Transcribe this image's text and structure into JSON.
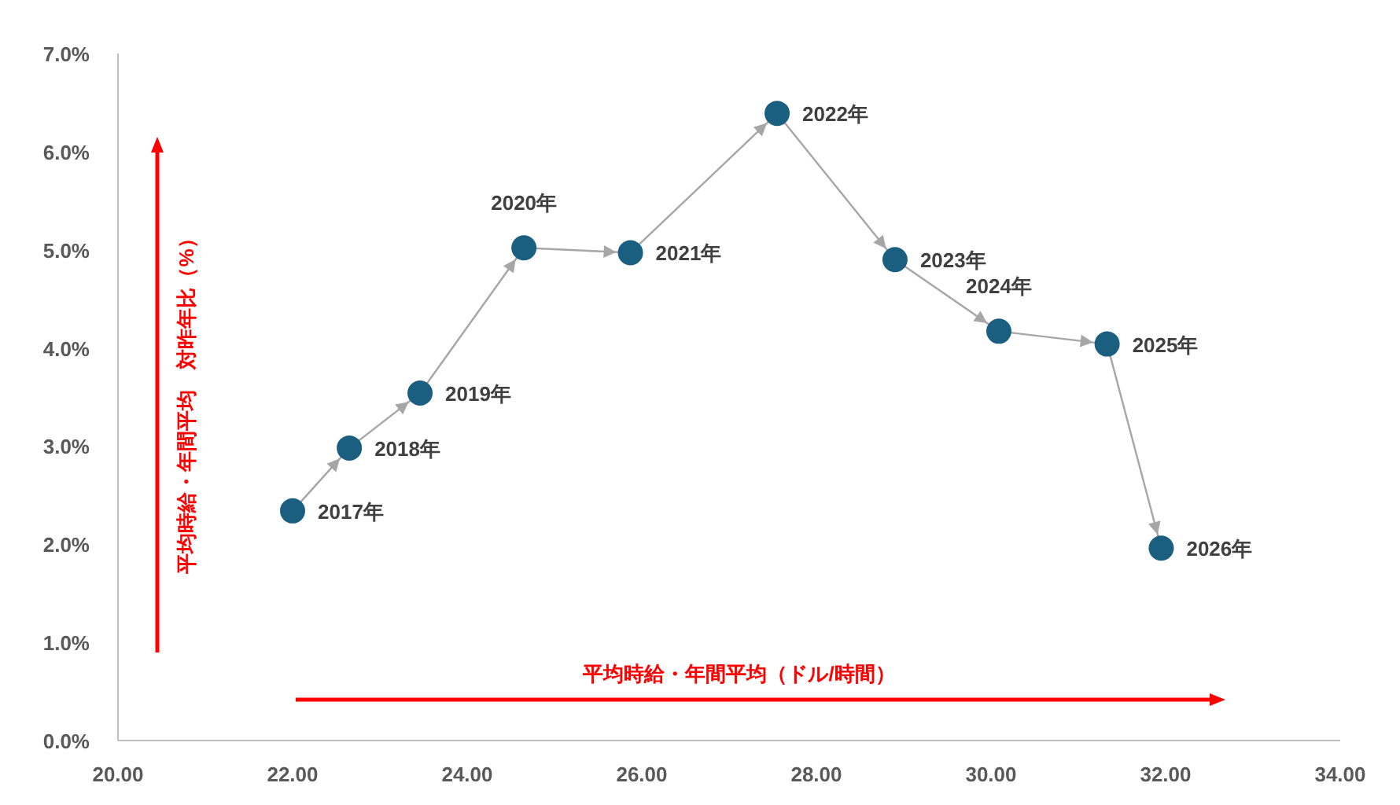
{
  "chart_data": {
    "type": "line",
    "xlabel": "平均時給・年間平均（ドル/時間）",
    "ylabel": "平均時給・年間平均　対昨年比（%）",
    "x": [
      22.0,
      22.65,
      23.46,
      24.65,
      25.87,
      27.55,
      28.9,
      30.09,
      31.33,
      31.95
    ],
    "series": [
      {
        "color": "#1a5e80",
        "values": [
          2.34,
          2.98,
          3.54,
          5.02,
          4.97,
          6.39,
          4.9,
          4.17,
          4.04,
          1.96
        ]
      }
    ],
    "marker": "circle",
    "annotations": [
      {
        "text": "2017年",
        "x": 22.0,
        "y": 2.34
      },
      {
        "text": "2018年",
        "x": 22.65,
        "y": 2.98
      },
      {
        "text": "2019年",
        "x": 23.46,
        "y": 3.54
      },
      {
        "text": "2020年",
        "x": 24.65,
        "y": 5.02
      },
      {
        "text": "2021年",
        "x": 25.87,
        "y": 4.97
      },
      {
        "text": "2022年",
        "x": 27.55,
        "y": 6.39
      },
      {
        "text": "2023年",
        "x": 28.9,
        "y": 4.9
      },
      {
        "text": "2024年",
        "x": 30.09,
        "y": 4.17
      },
      {
        "text": "2025年",
        "x": 31.33,
        "y": 4.04
      },
      {
        "text": "2026年",
        "x": 31.95,
        "y": 1.96
      }
    ],
    "xlim": [
      20,
      34
    ],
    "xticks": [
      {
        "value": 20,
        "label": "20.00"
      },
      {
        "value": 22,
        "label": "22.00"
      },
      {
        "value": 24,
        "label": "24.00"
      },
      {
        "value": 26,
        "label": "26.00"
      },
      {
        "value": 28,
        "label": "28.00"
      },
      {
        "value": 30,
        "label": "30.00"
      },
      {
        "value": 32,
        "label": "32.00"
      },
      {
        "value": 34,
        "label": "34.00"
      }
    ],
    "ylim": [
      0,
      7
    ],
    "yticks": [
      {
        "value": 0,
        "label": "0.0%"
      },
      {
        "value": 1,
        "label": "1.0%"
      },
      {
        "value": 2,
        "label": "2.0%"
      },
      {
        "value": 3,
        "label": "3.0%"
      },
      {
        "value": 4,
        "label": "4.0%"
      },
      {
        "value": 5,
        "label": "5.0%"
      },
      {
        "value": 6,
        "label": "6.0%"
      },
      {
        "value": 7,
        "label": "7.0%"
      }
    ]
  }
}
